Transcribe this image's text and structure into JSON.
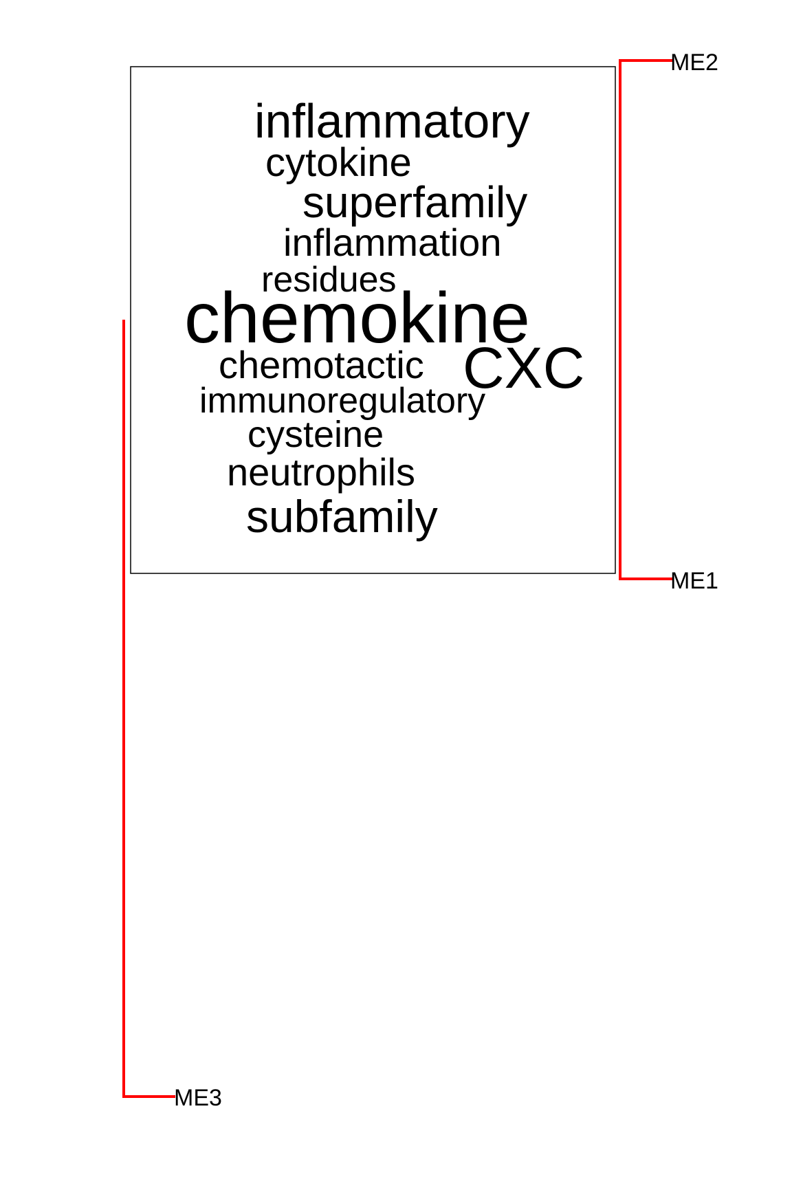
{
  "diagram": {
    "branch_color": "#ff0000",
    "text_color": "#000000",
    "leaves": [
      {
        "id": "ME2",
        "label": "ME2"
      },
      {
        "id": "ME1",
        "label": "ME1"
      },
      {
        "id": "ME3",
        "label": "ME3"
      }
    ],
    "word_cloud": {
      "words": [
        {
          "text": "inflammatory"
        },
        {
          "text": "cytokine"
        },
        {
          "text": "superfamily"
        },
        {
          "text": "inflammation"
        },
        {
          "text": "residues"
        },
        {
          "text": "chemokine"
        },
        {
          "text": "chemotactic"
        },
        {
          "text": "CXC"
        },
        {
          "text": "immunoregulatory"
        },
        {
          "text": "cysteine"
        },
        {
          "text": "neutrophils"
        },
        {
          "text": "subfamily"
        }
      ]
    }
  }
}
